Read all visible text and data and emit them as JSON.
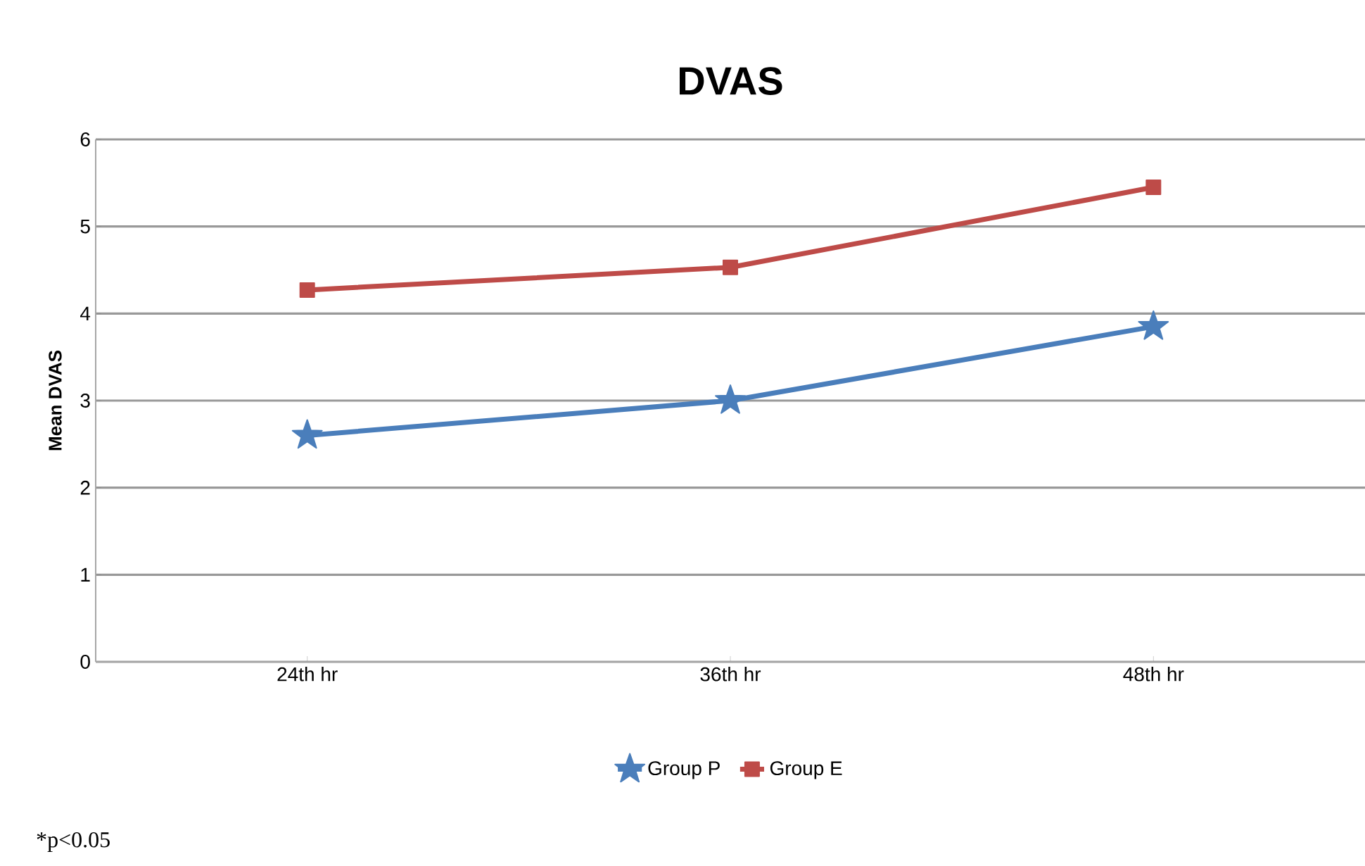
{
  "chart_data": {
    "type": "line",
    "title": "DVAS",
    "ylabel": "Mean DVAS",
    "categories": [
      "24th hr",
      "36th hr",
      "48th hr"
    ],
    "series": [
      {
        "name": "Group P",
        "color": "#4a7ebb",
        "values": [
          2.6,
          3.0,
          3.85
        ],
        "marker": "star"
      },
      {
        "name": "Group E",
        "color": "#be4b48",
        "values": [
          4.27,
          4.53,
          5.45
        ],
        "marker": "square"
      }
    ],
    "ylim": [
      0,
      6
    ],
    "yticks": [
      0,
      1,
      2,
      3,
      4,
      5,
      6
    ],
    "grid": "y",
    "legend": "bottom",
    "annotations": [
      "*p<0.05"
    ]
  }
}
